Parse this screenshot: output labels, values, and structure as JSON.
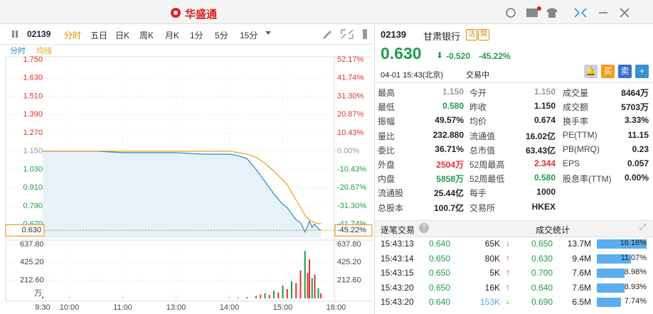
{
  "titlebar": {
    "logo": "华盛通"
  },
  "toolbar": {
    "code": "02139",
    "tabs": [
      "分时",
      "五日",
      "日K",
      "周K",
      "月K",
      "1分",
      "5分",
      "15分"
    ]
  },
  "chart_data": [
    {
      "type": "line",
      "x": [
        "9:30",
        "10:00",
        "10:30",
        "11:00",
        "11:30",
        "12:00",
        "13:00",
        "13:30",
        "14:00",
        "14:10",
        "14:20",
        "14:30",
        "14:40",
        "14:50",
        "15:00",
        "15:05",
        "15:10",
        "15:15",
        "15:20",
        "15:25",
        "15:28",
        "15:30",
        "15:33",
        "15:36",
        "15:40",
        "15:43"
      ],
      "series": [
        {
          "name": "分时",
          "color": "#2f86c8",
          "values": [
            1.15,
            1.15,
            1.15,
            1.14,
            1.14,
            1.14,
            1.14,
            1.13,
            1.13,
            1.12,
            1.1,
            1.03,
            0.95,
            0.87,
            0.8,
            0.78,
            0.74,
            0.7,
            0.68,
            0.62,
            0.66,
            0.69,
            0.65,
            0.67,
            0.64,
            0.63
          ]
        },
        {
          "name": "均线",
          "color": "#e8a317",
          "values": [
            1.15,
            1.15,
            1.15,
            1.15,
            1.15,
            1.15,
            1.15,
            1.15,
            1.15,
            1.14,
            1.13,
            1.11,
            1.07,
            1.02,
            0.96,
            0.93,
            0.88,
            0.83,
            0.78,
            0.73,
            0.71,
            0.7,
            0.69,
            0.68,
            0.675,
            0.674
          ]
        }
      ],
      "ylim": [
        0.58,
        1.75
      ],
      "yticks": [
        {
          "value": 0.67,
          "label": "0.670"
        },
        {
          "value": 0.79,
          "label": "0.790"
        },
        {
          "value": 0.91,
          "label": "0.910"
        },
        {
          "value": 1.03,
          "label": "1.030"
        },
        {
          "value": 1.15,
          "label": "1.150"
        },
        {
          "value": 1.27,
          "label": "1.270"
        },
        {
          "value": 1.39,
          "label": "1.390"
        },
        {
          "value": 1.51,
          "label": "1.510"
        },
        {
          "value": 1.63,
          "label": "1.630"
        },
        {
          "value": 1.75,
          "label": "1.750"
        }
      ],
      "y2lim": [
        -49.57,
        52.17
      ],
      "y2ticks": [
        {
          "value": -41.74,
          "label": "-41.74%"
        },
        {
          "value": -31.3,
          "label": "-31.30%"
        },
        {
          "value": -20.87,
          "label": "-20.87%"
        },
        {
          "value": -10.43,
          "label": "-10.43%"
        },
        {
          "value": 0,
          "label": "0.00%"
        },
        {
          "value": 10.43,
          "label": "10.43%"
        },
        {
          "value": 20.87,
          "label": "20.87%"
        },
        {
          "value": 31.3,
          "label": "31.30%"
        },
        {
          "value": 41.74,
          "label": "41.74%"
        },
        {
          "value": 52.17,
          "label": "52.17%"
        }
      ],
      "current": {
        "value": 0.63,
        "label": "0.630",
        "change": {
          "value": -45.22,
          "label": "-45.22%"
        }
      },
      "grid": true
    },
    {
      "type": "bar",
      "unit": "万",
      "x": [
        "9:30",
        "10:00",
        "11:00",
        "13:00",
        "14:00",
        "14:10",
        "14:20",
        "14:30",
        "14:35",
        "14:40",
        "14:45",
        "14:50",
        "14:55",
        "15:00",
        "15:05",
        "15:10",
        "15:15",
        "15:20",
        "15:25",
        "15:28",
        "15:30",
        "15:33",
        "15:36",
        "15:40",
        "15:43"
      ],
      "values": [
        20,
        3,
        4,
        3,
        5,
        8,
        15,
        30,
        45,
        60,
        40,
        90,
        70,
        150,
        110,
        200,
        180,
        330,
        560,
        300,
        460,
        240,
        280,
        120,
        60
      ],
      "colors": [
        "#e03030",
        "#1f9d4a",
        "#1f9d4a",
        "#e03030",
        "#1f9d4a",
        "#1f9d4a",
        "#e03030",
        "#1f9d4a",
        "#e03030",
        "#1f9d4a",
        "#e03030",
        "#1f9d4a",
        "#e03030",
        "#1f9d4a",
        "#e03030",
        "#1f9d4a",
        "#e03030",
        "#e03030",
        "#1f9d4a",
        "#e03030",
        "#e03030",
        "#1f9d4a",
        "#e03030",
        "#1f9d4a",
        "#e03030"
      ],
      "ylim": [
        0,
        671
      ],
      "yticks": [
        {
          "value": 212.6,
          "label": "212.60"
        },
        {
          "value": 425.2,
          "label": "425.20"
        },
        {
          "value": 637.8,
          "label": "637.80"
        }
      ],
      "xticks": [
        "9:30",
        "10:00",
        "11:00",
        "13:00",
        "14:00",
        "15:00",
        "16:00"
      ]
    }
  ],
  "quote": {
    "code": "02139",
    "name": "甘肃银行",
    "badges": [
      "沽",
      "窝"
    ],
    "price": "0.630",
    "change": "-0.520",
    "change_pct": "-45.22%",
    "time": "04-01 15:43(北京)",
    "status": "交易中",
    "buy": "买",
    "sell": "卖"
  },
  "stats": {
    "rows": [
      [
        {
          "label": "最高",
          "value": "1.150",
          "color": "#999999"
        },
        {
          "label": "今开",
          "value": "1.150",
          "color": "#999999"
        },
        {
          "label": "成交量",
          "value": "8464万"
        }
      ],
      [
        {
          "label": "最低",
          "value": "0.580",
          "color": "#1f9d4a"
        },
        {
          "label": "昨收",
          "value": "1.150"
        },
        {
          "label": "成交额",
          "value": "5703万"
        }
      ],
      [
        {
          "label": "振幅",
          "value": "49.57%"
        },
        {
          "label": "均价",
          "value": "0.674"
        },
        {
          "label": "换手率",
          "value": "3.33%"
        }
      ],
      [
        {
          "label": "量比",
          "value": "232.880"
        },
        {
          "label": "流通值",
          "value": "16.02亿"
        },
        {
          "label": "PE(TTM)",
          "value": "11.15"
        }
      ],
      [
        {
          "label": "委比",
          "value": "36.71%"
        },
        {
          "label": "总市值",
          "value": "63.43亿"
        },
        {
          "label": "PB(MRQ)",
          "value": "0.23"
        }
      ],
      [
        {
          "label": "外盘",
          "value": "2504万",
          "color": "#e03030"
        },
        {
          "label": "52周最高",
          "value": "2.344",
          "color": "#e03030"
        },
        {
          "label": "EPS",
          "value": "0.057"
        }
      ],
      [
        {
          "label": "内盘",
          "value": "5858万",
          "color": "#1f9d4a"
        },
        {
          "label": "52周最低",
          "value": "0.580",
          "color": "#1f9d4a"
        },
        {
          "label": "股息率(TTM)",
          "value": "0.00%"
        }
      ],
      [
        {
          "label": "流通股",
          "value": "25.44亿"
        },
        {
          "label": "每手",
          "value": "1000"
        }
      ],
      [
        {
          "label": "总股本",
          "value": "100.7亿"
        },
        {
          "label": "交易所",
          "value": "HKEX"
        }
      ]
    ]
  },
  "trades": {
    "title": "逐笔交易",
    "help": "?",
    "rows": [
      [
        "15:43:13",
        "0.640",
        "65K",
        "↓"
      ],
      [
        "15:43:14",
        "0.650",
        "80K",
        "↑"
      ],
      [
        "15:43:15",
        "0.650",
        "5K",
        "↑"
      ],
      [
        "15:43:20",
        "0.650",
        "16K",
        "↑"
      ],
      [
        "15:43:20",
        "0.640",
        "153K",
        "↓"
      ]
    ]
  },
  "volume_stats": {
    "title": "成交统计",
    "rows": [
      [
        "0.650",
        "13.7M",
        "16.16%"
      ],
      [
        "0.630",
        "9.4M",
        "11.07%"
      ],
      [
        "0.700",
        "7.6M",
        "8.98%"
      ],
      [
        "0.640",
        "7.6M",
        "8.93%"
      ],
      [
        "0.690",
        "6.5M",
        "7.74%"
      ]
    ]
  }
}
